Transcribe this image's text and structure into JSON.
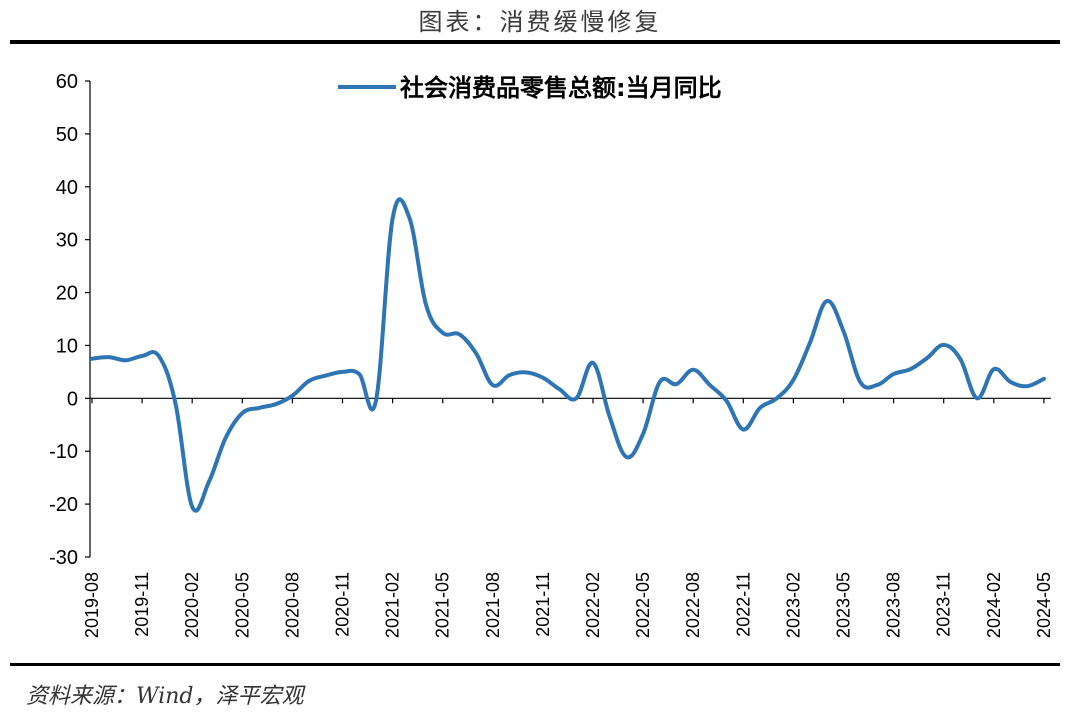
{
  "title": "图表：消费缓慢修复",
  "source": "资料来源：Wind，泽平宏观",
  "colors": {
    "series": "#2E75B6",
    "axis": "#000000"
  },
  "chart_data": {
    "type": "line",
    "ylim": [
      -30,
      60
    ],
    "yticks": [
      -30,
      -20,
      -10,
      0,
      10,
      20,
      30,
      40,
      50,
      60
    ],
    "xtick_labels": [
      "2019-08",
      "2019-11",
      "2020-02",
      "2020-05",
      "2020-08",
      "2020-11",
      "2021-02",
      "2021-05",
      "2021-08",
      "2021-11",
      "2022-02",
      "2022-05",
      "2022-08",
      "2022-11",
      "2023-02",
      "2023-05",
      "2023-08",
      "2023-11",
      "2024-02",
      "2024-05"
    ],
    "legend_position": "top",
    "x": [
      "2019-08",
      "2019-09",
      "2019-10",
      "2019-11",
      "2019-12",
      "2020-01",
      "2020-02",
      "2020-03",
      "2020-04",
      "2020-05",
      "2020-06",
      "2020-07",
      "2020-08",
      "2020-09",
      "2020-10",
      "2020-11",
      "2020-12",
      "2021-01",
      "2021-02",
      "2021-03",
      "2021-04",
      "2021-05",
      "2021-06",
      "2021-07",
      "2021-08",
      "2021-09",
      "2021-10",
      "2021-11",
      "2021-12",
      "2022-01",
      "2022-02",
      "2022-03",
      "2022-04",
      "2022-05",
      "2022-06",
      "2022-07",
      "2022-08",
      "2022-09",
      "2022-10",
      "2022-11",
      "2022-12",
      "2023-01",
      "2023-02",
      "2023-03",
      "2023-04",
      "2023-05",
      "2023-06",
      "2023-07",
      "2023-08",
      "2023-09",
      "2023-10",
      "2023-11",
      "2023-12",
      "2024-01",
      "2024-02",
      "2024-03",
      "2024-04",
      "2024-05"
    ],
    "series": [
      {
        "name": "社会消费品零售总额:当月同比",
        "values": [
          7.5,
          7.8,
          7.2,
          8.0,
          8.0,
          -1.0,
          -20.5,
          -15.8,
          -7.5,
          -2.8,
          -1.8,
          -1.1,
          0.5,
          3.3,
          4.3,
          5.0,
          4.6,
          -0.5,
          34.0,
          34.2,
          17.7,
          12.4,
          12.1,
          8.5,
          2.5,
          4.4,
          4.9,
          3.9,
          1.7,
          0.0,
          6.7,
          -3.5,
          -11.1,
          -6.7,
          3.1,
          2.7,
          5.4,
          2.5,
          -0.5,
          -5.9,
          -1.8,
          0.0,
          3.5,
          10.6,
          18.4,
          12.7,
          3.1,
          2.5,
          4.6,
          5.5,
          7.6,
          10.1,
          7.4,
          0.0,
          5.5,
          3.1,
          2.3,
          3.7
        ]
      }
    ]
  }
}
